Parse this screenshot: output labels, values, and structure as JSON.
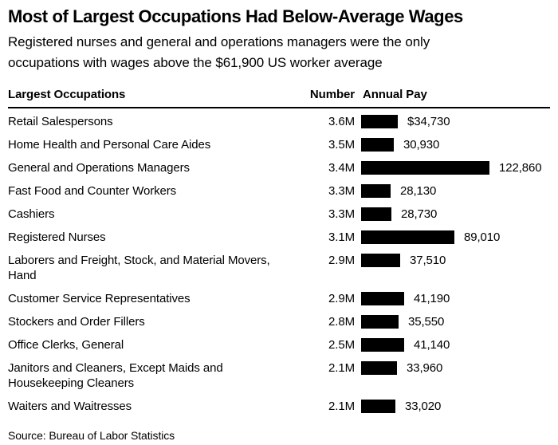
{
  "chart_data": {
    "type": "bar",
    "title": "Most of Largest Occupations Had Below-Average Wages",
    "subtitle": "Registered nurses and general and operations managers were the only occupations with wages above the $61,900 US worker average",
    "columns": [
      "Largest Occupations",
      "Number",
      "Annual Pay"
    ],
    "us_average_annual_pay": 61900,
    "xlim": [
      0,
      122860
    ],
    "bar_color": "#000000",
    "legend": "none",
    "grid": "off",
    "rows": [
      {
        "occupation": "Retail Salespersons",
        "number": "3.6M",
        "pay": 34730,
        "pay_label": "$34,730"
      },
      {
        "occupation": "Home Health and Personal Care Aides",
        "number": "3.5M",
        "pay": 30930,
        "pay_label": "30,930"
      },
      {
        "occupation": "General and Operations Managers",
        "number": "3.4M",
        "pay": 122860,
        "pay_label": "122,860"
      },
      {
        "occupation": "Fast Food and Counter Workers",
        "number": "3.3M",
        "pay": 28130,
        "pay_label": "28,130"
      },
      {
        "occupation": "Cashiers",
        "number": "3.3M",
        "pay": 28730,
        "pay_label": "28,730"
      },
      {
        "occupation": "Registered Nurses",
        "number": "3.1M",
        "pay": 89010,
        "pay_label": "89,010"
      },
      {
        "occupation": "Laborers and Freight, Stock, and Material Movers, Hand",
        "number": "2.9M",
        "pay": 37510,
        "pay_label": "37,510"
      },
      {
        "occupation": "Customer Service Representatives",
        "number": "2.9M",
        "pay": 41190,
        "pay_label": "41,190"
      },
      {
        "occupation": "Stockers and Order Fillers",
        "number": "2.8M",
        "pay": 35550,
        "pay_label": "35,550"
      },
      {
        "occupation": "Office Clerks, General",
        "number": "2.5M",
        "pay": 41140,
        "pay_label": "41,140"
      },
      {
        "occupation": "Janitors and Cleaners, Except Maids and Housekeeping Cleaners",
        "number": "2.1M",
        "pay": 33960,
        "pay_label": "33,960"
      },
      {
        "occupation": "Waiters and Waitresses",
        "number": "2.1M",
        "pay": 33020,
        "pay_label": "33,020"
      }
    ],
    "source": "Source: Bureau of Labor Statistics"
  }
}
